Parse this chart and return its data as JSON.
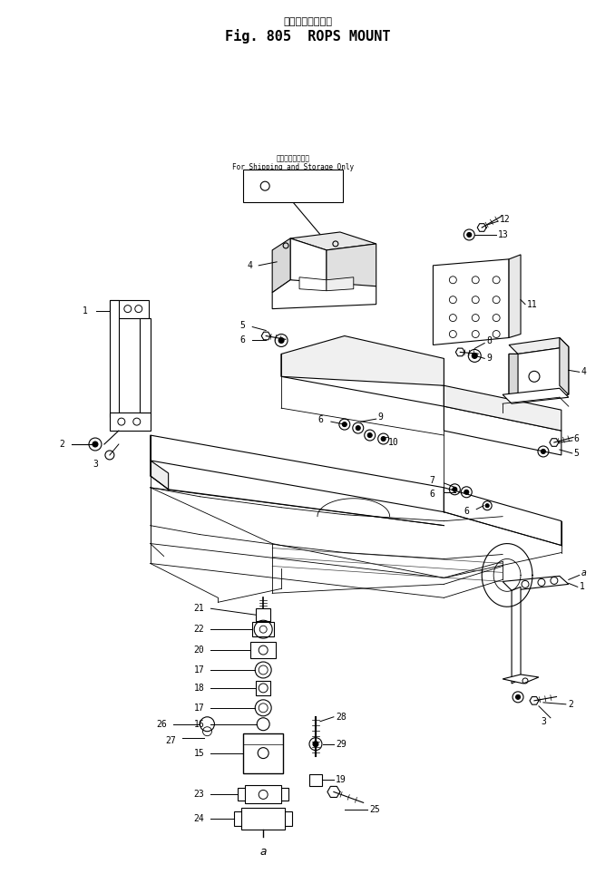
{
  "title_jp": "ロプス　マウント",
  "title_en": "Fig. 805  ROPS MOUNT",
  "ship_jp": "輸送および保管用",
  "ship_en": "For Shipping and Storage Only",
  "bg": "#ffffff",
  "lc": "#000000",
  "fig_w": 6.78,
  "fig_h": 9.85,
  "dpi": 100
}
